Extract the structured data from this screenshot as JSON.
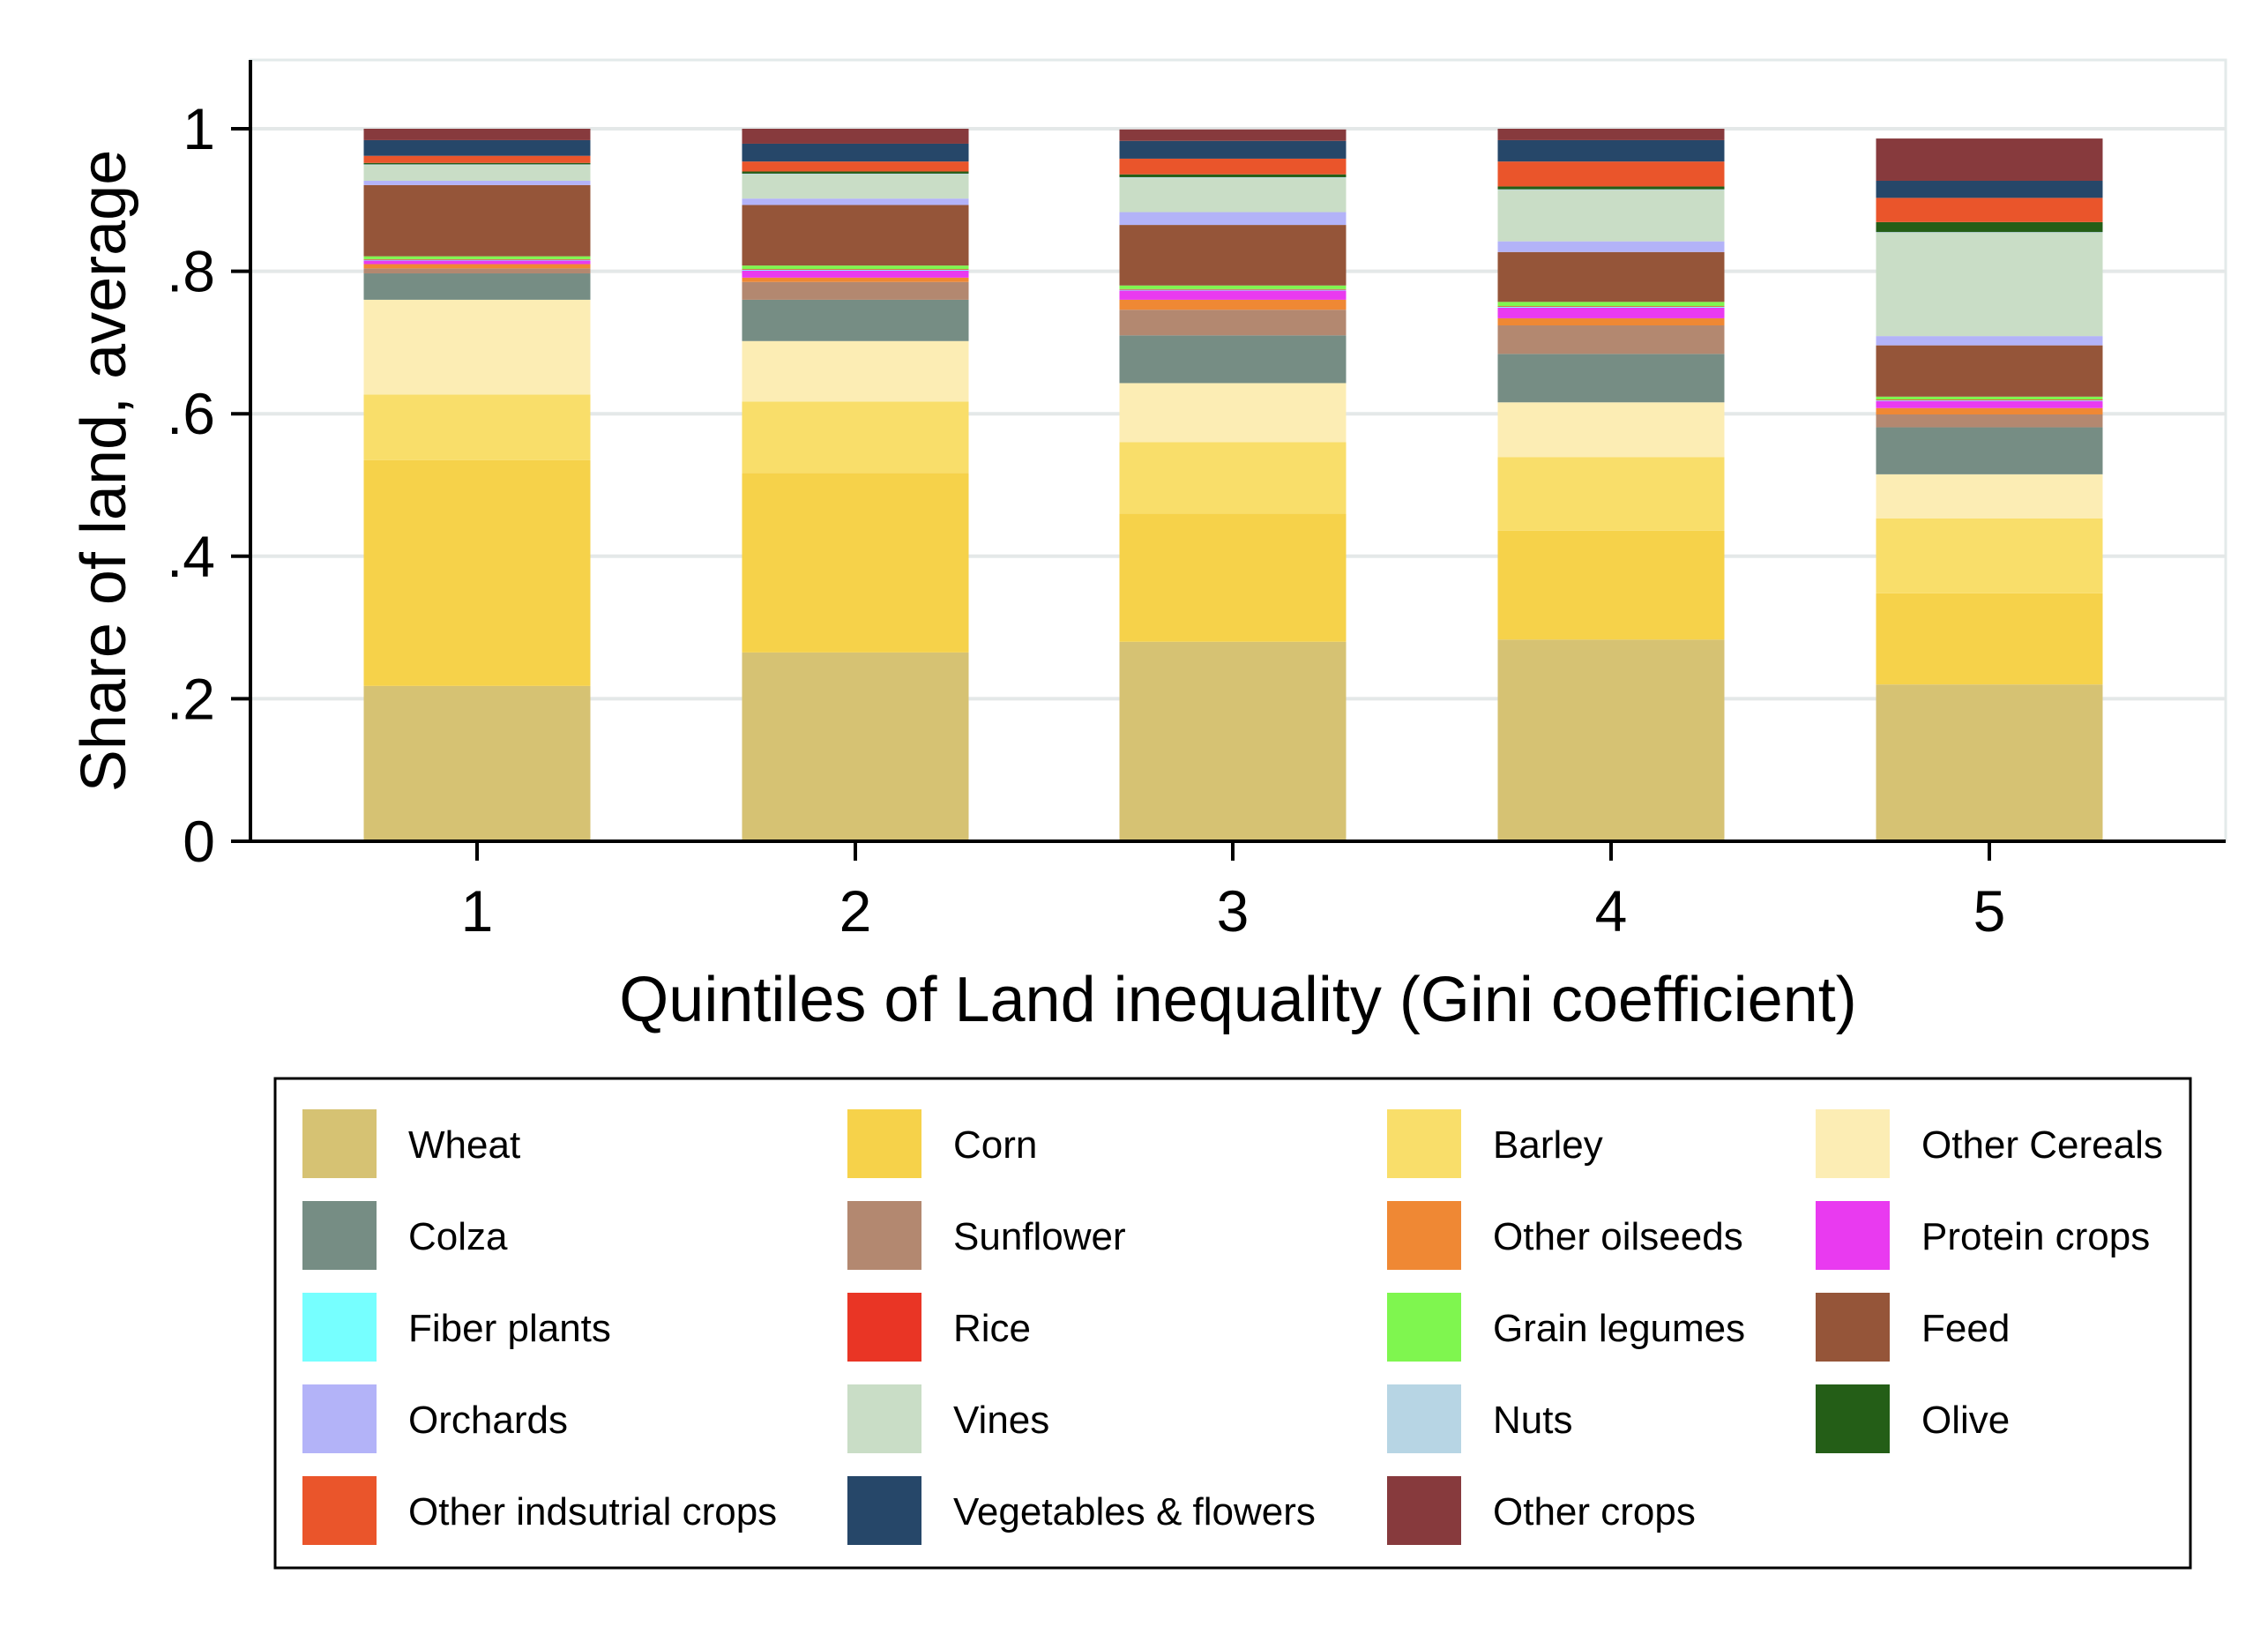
{
  "chart_data": {
    "type": "bar",
    "stacked": true,
    "xlabel": "Quintiles of Land inequality (Gini coefficient)",
    "ylabel": "Share of land, average",
    "categories": [
      "1",
      "2",
      "3",
      "4",
      "5"
    ],
    "ylim": [
      0,
      1.1
    ],
    "yticks": [
      {
        "value": 0,
        "label": "0"
      },
      {
        "value": 0.2,
        "label": ".2"
      },
      {
        "value": 0.4,
        "label": ".4"
      },
      {
        "value": 0.6,
        "label": ".6"
      },
      {
        "value": 0.8,
        "label": ".8"
      },
      {
        "value": 1,
        "label": "1"
      }
    ],
    "grid": true,
    "legend_position": "bottom",
    "series": [
      {
        "name": "Wheat",
        "color": "#D6C273",
        "values": [
          0.218,
          0.265,
          0.28,
          0.283,
          0.22
        ]
      },
      {
        "name": "Corn",
        "color": "#F6D24A",
        "values": [
          0.317,
          0.252,
          0.18,
          0.153,
          0.128
        ]
      },
      {
        "name": "Barley",
        "color": "#F9DE6A",
        "values": [
          0.092,
          0.1,
          0.1,
          0.103,
          0.105
        ]
      },
      {
        "name": "Other Cereals",
        "color": "#FCEDB4",
        "values": [
          0.133,
          0.085,
          0.083,
          0.077,
          0.062
        ]
      },
      {
        "name": "Colza",
        "color": "#768D84",
        "values": [
          0.037,
          0.058,
          0.067,
          0.068,
          0.066
        ]
      },
      {
        "name": "Sunflower",
        "color": "#B38870",
        "values": [
          0.007,
          0.025,
          0.036,
          0.04,
          0.018
        ]
      },
      {
        "name": "Other oilseeds",
        "color": "#EF8834",
        "values": [
          0.006,
          0.006,
          0.014,
          0.01,
          0.009
        ]
      },
      {
        "name": "Protein crops",
        "color": "#E93AF0",
        "values": [
          0.005,
          0.01,
          0.013,
          0.015,
          0.01
        ]
      },
      {
        "name": "Fiber plants",
        "color": "#76FFFF",
        "values": [
          0.001,
          0.001,
          0.001,
          0.001,
          0.001
        ]
      },
      {
        "name": "Rice",
        "color": "#E93525",
        "values": [
          0.001,
          0.001,
          0.001,
          0.001,
          0.001
        ]
      },
      {
        "name": "Grain legumes",
        "color": "#7FF64F",
        "values": [
          0.004,
          0.005,
          0.005,
          0.006,
          0.004
        ]
      },
      {
        "name": "Feed",
        "color": "#955539",
        "values": [
          0.1,
          0.085,
          0.085,
          0.07,
          0.072
        ]
      },
      {
        "name": "Orchards",
        "color": "#B3B3F8",
        "values": [
          0.006,
          0.009,
          0.018,
          0.015,
          0.013
        ]
      },
      {
        "name": "Vines",
        "color": "#C9DDC6",
        "values": [
          0.022,
          0.034,
          0.048,
          0.072,
          0.145
        ]
      },
      {
        "name": "Nuts",
        "color": "#B7D5E4",
        "values": [
          0.001,
          0.001,
          0.001,
          0.001,
          0.001
        ]
      },
      {
        "name": "Olive",
        "color": "#245E17",
        "values": [
          0.002,
          0.003,
          0.004,
          0.004,
          0.014
        ]
      },
      {
        "name": "Other indsutrial crops",
        "color": "#EA552B",
        "values": [
          0.01,
          0.014,
          0.022,
          0.035,
          0.034
        ]
      },
      {
        "name": "Vegetables & flowers",
        "color": "#264769",
        "values": [
          0.022,
          0.025,
          0.025,
          0.03,
          0.024
        ]
      },
      {
        "name": "Other crops",
        "color": "#873A3D",
        "values": [
          0.016,
          0.021,
          0.016,
          0.016,
          0.0593
        ]
      }
    ],
    "legend_order": [
      "Wheat",
      "Corn",
      "Barley",
      "Other Cereals",
      "Colza",
      "Sunflower",
      "Other oilseeds",
      "Protein crops",
      "Fiber plants",
      "Rice",
      "Grain legumes",
      "Feed",
      "Orchards",
      "Vines",
      "Nuts",
      "Olive",
      "Other indsutrial crops",
      "Vegetables & flowers",
      "Other crops"
    ]
  }
}
